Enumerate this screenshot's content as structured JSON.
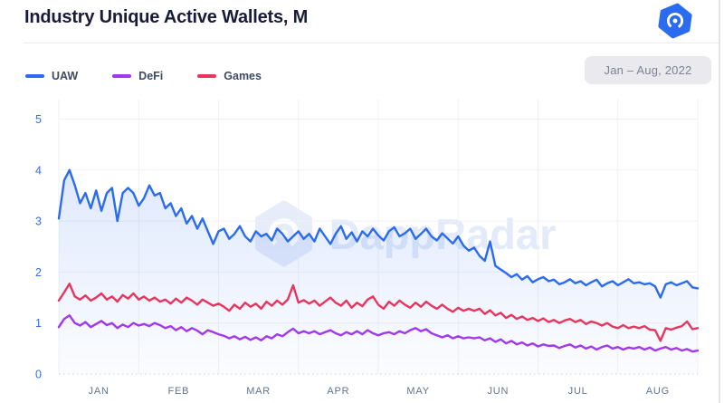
{
  "header": {
    "title": "Industry Unique Active Wallets, M"
  },
  "period_badge": {
    "label": "Jan – Aug, 2022"
  },
  "watermark": {
    "text": "DappRadar"
  },
  "colors": {
    "uaw": "#2A6BEF",
    "defi": "#A238EC",
    "games": "#E8355E",
    "y_axis_label": "#2F6FF2",
    "x_axis_label": "#64748F",
    "grid": "#EFF1F6",
    "badge_bg": "#E9E9EE"
  },
  "chart_data": {
    "type": "line",
    "title": "Industry Unique Active Wallets, M",
    "xlabel": "",
    "ylabel": "",
    "x_axis": {
      "months": [
        "JAN",
        "FEB",
        "MAR",
        "APR",
        "MAY",
        "JUN",
        "JUL",
        "AUG"
      ]
    },
    "y_axis": {
      "ticks": [
        0,
        1,
        2,
        3,
        4,
        5
      ],
      "range": [
        0,
        5
      ]
    },
    "grid": true,
    "legend_position": "top-left",
    "sampling": "approx. every 2 days, Jan 1 – Aug 31, 2022",
    "series": [
      {
        "name": "UAW",
        "color": "#2A6BEF",
        "area_fill": true,
        "values": [
          3.05,
          3.8,
          4.0,
          3.7,
          3.35,
          3.55,
          3.25,
          3.6,
          3.2,
          3.55,
          3.65,
          3.0,
          3.55,
          3.65,
          3.55,
          3.3,
          3.45,
          3.7,
          3.5,
          3.55,
          3.25,
          3.35,
          3.1,
          3.25,
          2.95,
          3.1,
          2.85,
          3.05,
          2.8,
          2.55,
          2.8,
          2.85,
          2.65,
          2.75,
          2.9,
          2.7,
          2.6,
          2.8,
          2.7,
          2.75,
          2.62,
          2.85,
          2.75,
          2.6,
          2.7,
          2.8,
          2.65,
          2.75,
          2.6,
          2.85,
          2.7,
          2.55,
          2.75,
          2.9,
          2.65,
          2.78,
          2.6,
          2.8,
          2.7,
          2.85,
          2.72,
          2.62,
          2.8,
          2.88,
          2.7,
          2.76,
          2.85,
          2.65,
          2.75,
          2.85,
          2.7,
          2.62,
          2.76,
          2.66,
          2.56,
          2.7,
          2.52,
          2.42,
          2.48,
          2.32,
          2.22,
          2.6,
          2.12,
          2.05,
          1.98,
          1.9,
          1.96,
          1.85,
          1.92,
          1.8,
          1.86,
          1.9,
          1.82,
          1.85,
          1.76,
          1.8,
          1.86,
          1.78,
          1.82,
          1.74,
          1.8,
          1.85,
          1.72,
          1.78,
          1.82,
          1.74,
          1.8,
          1.86,
          1.78,
          1.8,
          1.76,
          1.78,
          1.72,
          1.5,
          1.76,
          1.8,
          1.74,
          1.78,
          1.82,
          1.7,
          1.68
        ]
      },
      {
        "name": "DeFi",
        "color": "#A238EC",
        "area_fill": false,
        "values": [
          0.92,
          1.08,
          1.15,
          1.0,
          0.95,
          1.02,
          0.92,
          0.98,
          1.04,
          0.96,
          1.0,
          0.9,
          0.97,
          0.92,
          1.0,
          0.95,
          0.98,
          0.94,
          1.0,
          0.96,
          0.9,
          0.94,
          0.86,
          0.92,
          0.84,
          0.9,
          0.85,
          0.78,
          0.86,
          0.82,
          0.78,
          0.75,
          0.7,
          0.74,
          0.68,
          0.73,
          0.67,
          0.72,
          0.66,
          0.74,
          0.7,
          0.78,
          0.74,
          0.82,
          0.89,
          0.8,
          0.84,
          0.8,
          0.84,
          0.78,
          0.82,
          0.86,
          0.8,
          0.76,
          0.82,
          0.78,
          0.84,
          0.78,
          0.86,
          0.8,
          0.76,
          0.8,
          0.82,
          0.78,
          0.84,
          0.8,
          0.86,
          0.9,
          0.84,
          0.88,
          0.8,
          0.76,
          0.72,
          0.76,
          0.7,
          0.74,
          0.7,
          0.72,
          0.7,
          0.72,
          0.66,
          0.7,
          0.63,
          0.68,
          0.6,
          0.65,
          0.58,
          0.62,
          0.56,
          0.6,
          0.54,
          0.58,
          0.55,
          0.56,
          0.51,
          0.55,
          0.58,
          0.52,
          0.56,
          0.5,
          0.54,
          0.48,
          0.53,
          0.56,
          0.5,
          0.53,
          0.48,
          0.52,
          0.5,
          0.53,
          0.48,
          0.52,
          0.46,
          0.5,
          0.53,
          0.48,
          0.51,
          0.46,
          0.49,
          0.44,
          0.46
        ]
      },
      {
        "name": "Games",
        "color": "#E8355E",
        "area_fill": false,
        "values": [
          1.44,
          1.6,
          1.77,
          1.52,
          1.46,
          1.54,
          1.44,
          1.5,
          1.58,
          1.46,
          1.52,
          1.42,
          1.55,
          1.48,
          1.58,
          1.46,
          1.52,
          1.44,
          1.5,
          1.42,
          1.46,
          1.38,
          1.48,
          1.4,
          1.5,
          1.44,
          1.36,
          1.46,
          1.4,
          1.34,
          1.38,
          1.32,
          1.24,
          1.36,
          1.28,
          1.4,
          1.32,
          1.38,
          1.28,
          1.42,
          1.34,
          1.44,
          1.36,
          1.46,
          1.74,
          1.4,
          1.45,
          1.38,
          1.44,
          1.34,
          1.42,
          1.5,
          1.4,
          1.34,
          1.44,
          1.3,
          1.4,
          1.33,
          1.46,
          1.52,
          1.36,
          1.28,
          1.42,
          1.34,
          1.44,
          1.36,
          1.3,
          1.4,
          1.32,
          1.42,
          1.34,
          1.28,
          1.36,
          1.28,
          1.22,
          1.3,
          1.24,
          1.28,
          1.24,
          1.28,
          1.18,
          1.25,
          1.15,
          1.2,
          1.1,
          1.16,
          1.08,
          1.13,
          1.06,
          1.1,
          1.04,
          1.09,
          1.02,
          1.06,
          1.0,
          1.05,
          1.08,
          1.02,
          1.06,
          0.98,
          1.03,
          1.0,
          0.95,
          1.0,
          0.93,
          0.9,
          0.96,
          0.9,
          0.93,
          0.9,
          0.94,
          0.87,
          0.86,
          0.65,
          0.9,
          0.87,
          0.91,
          0.94,
          1.03,
          0.88,
          0.9
        ]
      }
    ]
  }
}
